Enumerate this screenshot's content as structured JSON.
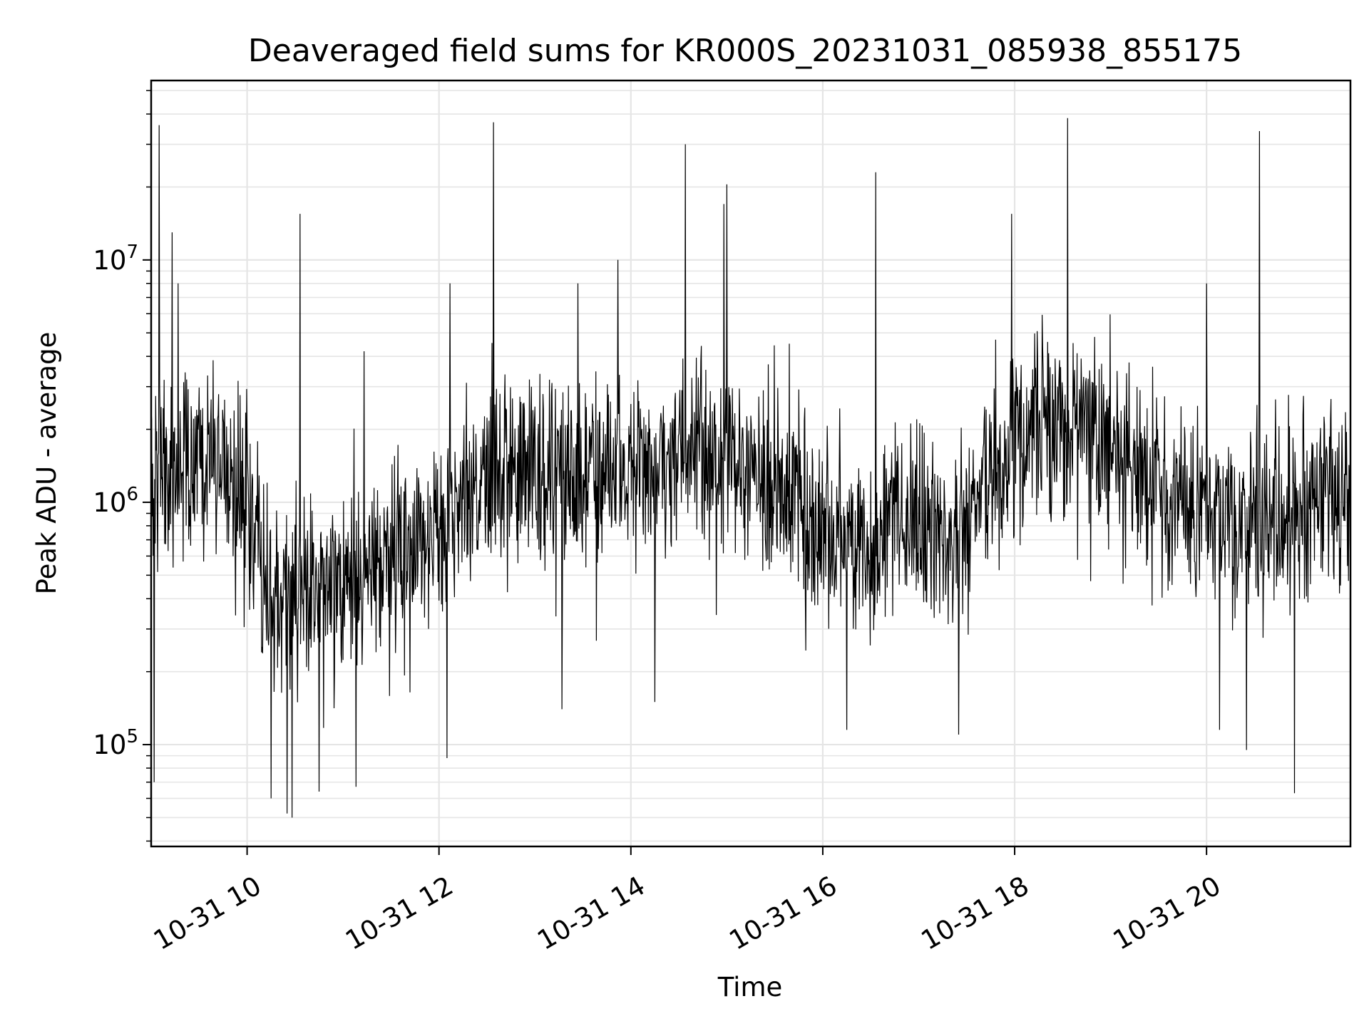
{
  "chart_data": {
    "type": "line",
    "title": "Deaveraged field sums for KR000S_20231031_085938_855175",
    "xlabel": "Time",
    "ylabel": "Peak ADU - average",
    "x_range": [
      "2023-10-31 09:00",
      "2023-10-31 21:30"
    ],
    "y_range": [
      38000,
      55000000
    ],
    "y_scale": "log",
    "grid": true,
    "line_color": "#000000",
    "grid_color": "#e5e5e5",
    "x_ticks": [
      {
        "time": "2023-10-31 10:00",
        "label": "10-31 10"
      },
      {
        "time": "2023-10-31 12:00",
        "label": "10-31 12"
      },
      {
        "time": "2023-10-31 14:00",
        "label": "10-31 14"
      },
      {
        "time": "2023-10-31 16:00",
        "label": "10-31 16"
      },
      {
        "time": "2023-10-31 18:00",
        "label": "10-31 18"
      },
      {
        "time": "2023-10-31 20:00",
        "label": "10-31 20"
      }
    ],
    "y_ticks": [
      {
        "value": 100000,
        "base": "10",
        "exp": "5"
      },
      {
        "value": 1000000,
        "base": "10",
        "exp": "6"
      },
      {
        "value": 10000000,
        "base": "10",
        "exp": "7"
      }
    ],
    "series": [
      {
        "name": "",
        "baseline_points": [
          {
            "t": "2023-10-31 09:00",
            "v": 1200000
          },
          {
            "t": "2023-10-31 09:30",
            "v": 1500000
          },
          {
            "t": "2023-10-31 09:50",
            "v": 1400000
          },
          {
            "t": "2023-10-31 10:15",
            "v": 400000
          },
          {
            "t": "2023-10-31 10:40",
            "v": 380000
          },
          {
            "t": "2023-10-31 11:20",
            "v": 550000
          },
          {
            "t": "2023-10-31 12:00",
            "v": 800000
          },
          {
            "t": "2023-10-31 12:30",
            "v": 1300000
          },
          {
            "t": "2023-10-31 13:30",
            "v": 1300000
          },
          {
            "t": "2023-10-31 14:30",
            "v": 1500000
          },
          {
            "t": "2023-10-31 15:30",
            "v": 1300000
          },
          {
            "t": "2023-10-31 16:00",
            "v": 700000
          },
          {
            "t": "2023-10-31 17:00",
            "v": 800000
          },
          {
            "t": "2023-10-31 17:30",
            "v": 900000
          },
          {
            "t": "2023-10-31 18:00",
            "v": 2000000
          },
          {
            "t": "2023-10-31 18:45",
            "v": 2000000
          },
          {
            "t": "2023-10-31 19:30",
            "v": 1200000
          },
          {
            "t": "2023-10-31 20:30",
            "v": 800000
          },
          {
            "t": "2023-10-31 21:30",
            "v": 1300000
          }
        ],
        "spikes": [
          {
            "t": "2023-10-31 09:05",
            "v": 36000000
          },
          {
            "t": "2023-10-31 09:13",
            "v": 13000000
          },
          {
            "t": "2023-10-31 09:17",
            "v": 8000000
          },
          {
            "t": "2023-10-31 10:33",
            "v": 15500000
          },
          {
            "t": "2023-10-31 11:13",
            "v": 4200000
          },
          {
            "t": "2023-10-31 12:07",
            "v": 8000000
          },
          {
            "t": "2023-10-31 12:34",
            "v": 37000000
          },
          {
            "t": "2023-10-31 13:27",
            "v": 8000000
          },
          {
            "t": "2023-10-31 13:52",
            "v": 10000000
          },
          {
            "t": "2023-10-31 14:34",
            "v": 30000000
          },
          {
            "t": "2023-10-31 14:58",
            "v": 17000000
          },
          {
            "t": "2023-10-31 15:00",
            "v": 20500000
          },
          {
            "t": "2023-10-31 16:33",
            "v": 23000000
          },
          {
            "t": "2023-10-31 17:58",
            "v": 15500000
          },
          {
            "t": "2023-10-31 18:33",
            "v": 38500000
          },
          {
            "t": "2023-10-31 20:33",
            "v": 34000000
          },
          {
            "t": "2023-10-31 20:00",
            "v": 8000000
          }
        ],
        "dips": [
          {
            "t": "2023-10-31 09:02",
            "v": 70000
          },
          {
            "t": "2023-10-31 10:15",
            "v": 60000
          },
          {
            "t": "2023-10-31 10:25",
            "v": 52000
          },
          {
            "t": "2023-10-31 10:28",
            "v": 50000
          },
          {
            "t": "2023-10-31 10:45",
            "v": 64000
          },
          {
            "t": "2023-10-31 11:08",
            "v": 67000
          },
          {
            "t": "2023-10-31 12:05",
            "v": 88000
          },
          {
            "t": "2023-10-31 13:17",
            "v": 140000
          },
          {
            "t": "2023-10-31 14:15",
            "v": 150000
          },
          {
            "t": "2023-10-31 16:15",
            "v": 115000
          },
          {
            "t": "2023-10-31 17:25",
            "v": 110000
          },
          {
            "t": "2023-10-31 20:08",
            "v": 115000
          },
          {
            "t": "2023-10-31 20:25",
            "v": 95000
          },
          {
            "t": "2023-10-31 20:55",
            "v": 63000
          }
        ]
      }
    ]
  }
}
